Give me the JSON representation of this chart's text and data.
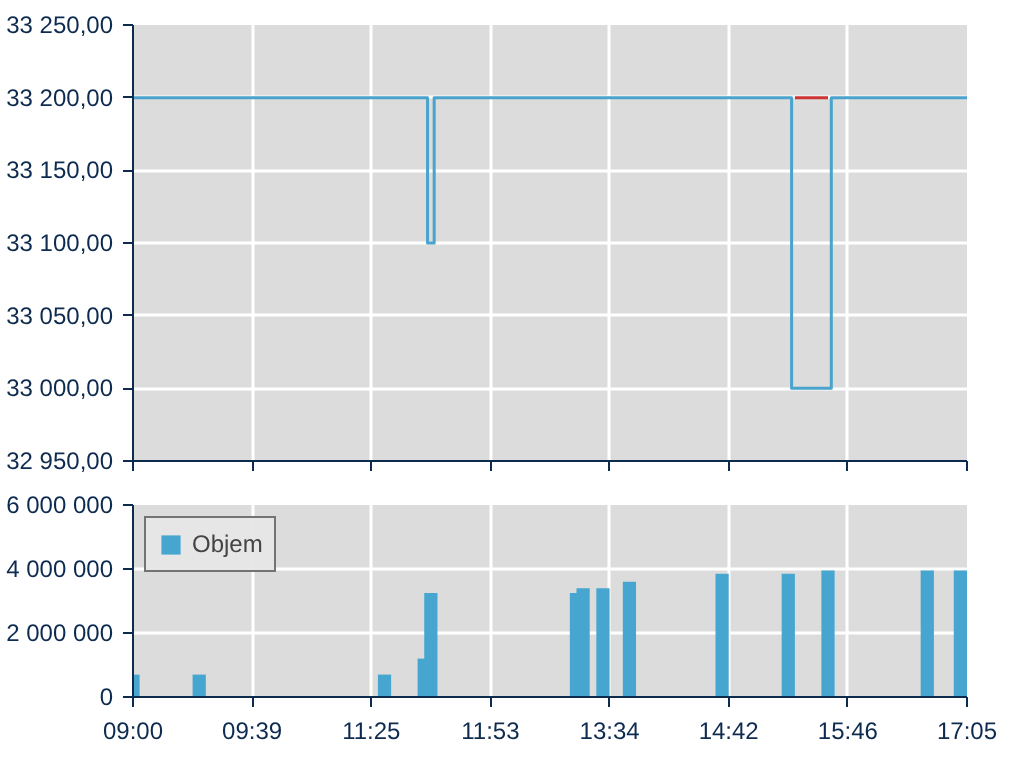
{
  "chart_data": [
    {
      "type": "step",
      "ylim": [
        32950,
        33250
      ],
      "categories": [
        null,
        null,
        null,
        null,
        null,
        null,
        null,
        null,
        null,
        null,
        null,
        null,
        null,
        null,
        null,
        null,
        null,
        null,
        null,
        null,
        null,
        null,
        null,
        null,
        null,
        null,
        null,
        null,
        null,
        null,
        null,
        null,
        null,
        null,
        null,
        null,
        null,
        null,
        null,
        null,
        null,
        null,
        null,
        null,
        null,
        null,
        null,
        null,
        null,
        null,
        null,
        null,
        null,
        null,
        null,
        null,
        null,
        null,
        null,
        null,
        null,
        null,
        null,
        null,
        null,
        null,
        null,
        null,
        null,
        null,
        null,
        null,
        null,
        null,
        null,
        null,
        null,
        null,
        null,
        null,
        null,
        null,
        null,
        null,
        null,
        null,
        null,
        null,
        null,
        null,
        null,
        null,
        null,
        null,
        null,
        null,
        null,
        null,
        null,
        null,
        null,
        null,
        null,
        null,
        null,
        null,
        null,
        null,
        null,
        null,
        null,
        null,
        null,
        null,
        null,
        null,
        null,
        null,
        null,
        null,
        null,
        null,
        null,
        null,
        null,
        null,
        null
      ],
      "yticks": [
        {
          "value": 32950,
          "label": "32 950,00"
        },
        {
          "value": 33000,
          "label": "33 000,00"
        },
        {
          "value": 33050,
          "label": "33 050,00"
        },
        {
          "value": 33100,
          "label": "33 100,00"
        },
        {
          "value": 33150,
          "label": "33 150,00"
        },
        {
          "value": 33200,
          "label": "33 200,00"
        },
        {
          "value": 33250,
          "label": "33 250,00"
        }
      ],
      "tick_labels": "y",
      "grid": true,
      "series": [
        {
          "color": "#4aa3cc",
          "values": [
            33200,
            33200,
            33200,
            33200,
            33200,
            33200,
            33200,
            33200,
            33200,
            33200,
            33200,
            33200,
            33200,
            33200,
            33200,
            33200,
            33200,
            33200,
            33200,
            33200,
            33200,
            33200,
            33200,
            33200,
            33200,
            33200,
            33200,
            33200,
            33200,
            33200,
            33200,
            33200,
            33200,
            33200,
            33200,
            33200,
            33200,
            33200,
            33200,
            33200,
            33200,
            33200,
            33200,
            33200,
            33200,
            33100,
            33200,
            33200,
            33200,
            33200,
            33200,
            33200,
            33200,
            33200,
            33200,
            33200,
            33200,
            33200,
            33200,
            33200,
            33200,
            33200,
            33200,
            33200,
            33200,
            33200,
            33200,
            33200,
            33200,
            33200,
            33200,
            33200,
            33200,
            33200,
            33200,
            33200,
            33200,
            33200,
            33200,
            33200,
            33200,
            33200,
            33200,
            33200,
            33200,
            33200,
            33200,
            33200,
            33200,
            33200,
            33200,
            33200,
            33200,
            33200,
            33200,
            33200,
            33200,
            33200,
            33200,
            33200,
            33000,
            33000,
            33000,
            33000,
            33000,
            33000,
            33200,
            33200,
            33200,
            33200,
            33200,
            33200,
            33200,
            33200,
            33200,
            33200,
            33200,
            33200,
            33200,
            33200,
            33200,
            33200,
            33200,
            33200,
            33200,
            33200,
            33200
          ]
        },
        {
          "color": "#cc3333",
          "values": [
            null,
            null,
            null,
            null,
            null,
            null,
            null,
            null,
            null,
            null,
            null,
            null,
            null,
            null,
            null,
            null,
            null,
            null,
            null,
            null,
            null,
            null,
            null,
            null,
            null,
            null,
            null,
            null,
            null,
            null,
            null,
            null,
            null,
            null,
            null,
            null,
            null,
            null,
            null,
            null,
            null,
            null,
            null,
            null,
            null,
            null,
            null,
            null,
            null,
            null,
            null,
            null,
            null,
            null,
            null,
            null,
            null,
            null,
            null,
            null,
            null,
            null,
            null,
            null,
            null,
            null,
            null,
            null,
            null,
            null,
            null,
            null,
            null,
            null,
            null,
            null,
            null,
            null,
            null,
            null,
            null,
            null,
            null,
            null,
            null,
            null,
            null,
            null,
            null,
            null,
            null,
            null,
            null,
            null,
            null,
            null,
            null,
            null,
            null,
            null,
            33200,
            33200,
            33200,
            33200,
            33200,
            33200,
            null,
            null,
            null,
            null,
            null,
            null,
            null,
            null,
            null,
            null,
            null,
            null,
            null,
            null,
            null,
            null,
            null,
            null,
            null,
            null,
            null
          ]
        }
      ]
    },
    {
      "type": "bar",
      "ylim": [
        0,
        6000000
      ],
      "categories": [
        "09:00",
        null,
        null,
        null,
        null,
        null,
        null,
        null,
        null,
        null,
        null,
        null,
        null,
        null,
        null,
        null,
        null,
        null,
        "09:39",
        null,
        null,
        null,
        null,
        null,
        null,
        null,
        null,
        null,
        null,
        null,
        null,
        null,
        null,
        null,
        null,
        null,
        "11:25",
        null,
        null,
        null,
        null,
        null,
        null,
        null,
        null,
        null,
        null,
        null,
        null,
        null,
        null,
        null,
        null,
        null,
        "11:53",
        null,
        null,
        null,
        null,
        null,
        null,
        null,
        null,
        null,
        null,
        null,
        null,
        null,
        null,
        null,
        null,
        null,
        "13:34",
        null,
        null,
        null,
        null,
        null,
        null,
        null,
        null,
        null,
        null,
        null,
        null,
        null,
        null,
        null,
        null,
        null,
        "14:42",
        null,
        null,
        null,
        null,
        null,
        null,
        null,
        null,
        null,
        null,
        null,
        null,
        null,
        null,
        null,
        null,
        null,
        "15:46",
        null,
        null,
        null,
        null,
        null,
        null,
        null,
        null,
        null,
        null,
        null,
        null,
        null,
        null,
        null,
        null,
        null,
        "17:05"
      ],
      "yticks": [
        {
          "value": 0,
          "label": "0"
        },
        {
          "value": 2000000,
          "label": "2 000 000"
        },
        {
          "value": 4000000,
          "label": "4 000 000"
        },
        {
          "value": 6000000,
          "label": "6 000 000"
        }
      ],
      "grid": true,
      "legend": "top left",
      "series": [
        {
          "name": "Objem",
          "color": "#47a6d0",
          "values": [
            700000,
            null,
            null,
            null,
            null,
            null,
            null,
            null,
            null,
            null,
            700000,
            null,
            null,
            null,
            null,
            null,
            null,
            null,
            null,
            null,
            null,
            null,
            null,
            null,
            null,
            null,
            null,
            null,
            null,
            null,
            null,
            null,
            null,
            null,
            null,
            null,
            null,
            null,
            700000,
            null,
            null,
            null,
            null,
            null,
            1200000,
            3250000,
            null,
            null,
            null,
            null,
            null,
            null,
            null,
            null,
            null,
            null,
            null,
            null,
            null,
            null,
            null,
            null,
            null,
            null,
            null,
            null,
            null,
            3250000,
            3400000,
            null,
            null,
            3400000,
            null,
            null,
            null,
            3600000,
            null,
            null,
            null,
            null,
            null,
            null,
            null,
            null,
            null,
            null,
            null,
            null,
            null,
            3850000,
            null,
            null,
            null,
            null,
            null,
            null,
            null,
            null,
            null,
            3850000,
            null,
            null,
            null,
            null,
            null,
            3950000,
            null,
            null,
            null,
            null,
            null,
            null,
            null,
            null,
            null,
            null,
            null,
            null,
            null,
            null,
            3950000,
            null,
            null,
            null,
            null,
            3950000,
            null
          ]
        }
      ]
    }
  ]
}
